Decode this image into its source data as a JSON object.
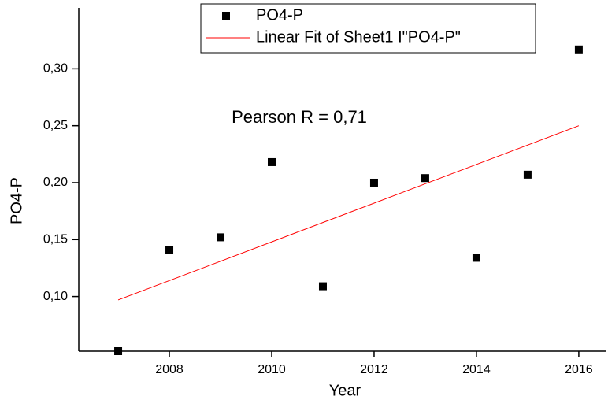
{
  "chart_data": {
    "type": "scatter",
    "x_label": "Year",
    "y_label": "PO4-P",
    "annotation": "Pearson R = 0,71",
    "series": [
      {
        "name": "PO4-P",
        "color": "#000000",
        "kind": "scatter",
        "x": [
          2007,
          2008,
          2009,
          2010,
          2011,
          2012,
          2013,
          2014,
          2015,
          2016
        ],
        "values": [
          0.052,
          0.141,
          0.152,
          0.218,
          0.109,
          0.2,
          0.204,
          0.134,
          0.207,
          0.317
        ]
      },
      {
        "name": "Linear Fit of Sheet1 I\"PO4-P\"",
        "color": "#ff0000",
        "kind": "line",
        "x": [
          2007,
          2016
        ],
        "values": [
          0.097,
          0.25
        ]
      }
    ],
    "xlim": [
      2006.23,
      2016.54
    ],
    "ylim": [
      0.052,
      0.33
    ],
    "xticks": [
      2008,
      2010,
      2012,
      2014,
      2016
    ],
    "yticks": [
      {
        "value": 0.1,
        "label": "0,10"
      },
      {
        "value": 0.15,
        "label": "0,15"
      },
      {
        "value": 0.2,
        "label": "0,20"
      },
      {
        "value": 0.25,
        "label": "0,25"
      },
      {
        "value": 0.3,
        "label": "0,30"
      }
    ],
    "legend": "top"
  }
}
